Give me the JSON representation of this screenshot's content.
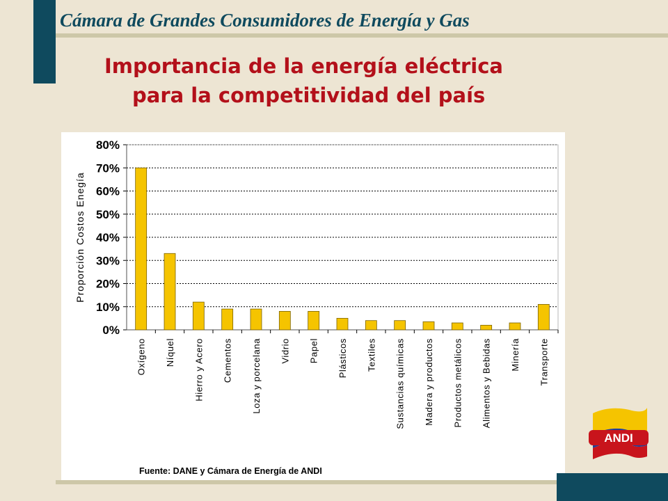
{
  "header": {
    "org_title": "Cámara  de Grandes Consumidores de Energía y Gas"
  },
  "slide": {
    "title_line1": "Importancia de la energía eléctrica",
    "title_line2": "para la competitividad del país"
  },
  "logo": {
    "text": "ANDI"
  },
  "colors": {
    "accent": "#0f4a5e",
    "title": "#b3101a",
    "bar": "#f5c400",
    "background": "#ede5d3"
  },
  "chart_data": {
    "type": "bar",
    "categories": [
      "Oxígeno",
      "Níquel",
      "Hierro y Acero",
      "Cementos",
      "Loza y porcelana",
      "Vidrio",
      "Papel",
      "Plásticos",
      "Textiles",
      "Sustancias químicas",
      "Madera y productos",
      "Productos metálicos",
      "Alimentos y Bebidas",
      "Minería",
      "Transporte"
    ],
    "values": [
      70,
      33,
      12,
      9,
      9,
      8,
      8,
      5,
      4,
      4,
      3.5,
      3,
      2,
      3,
      11
    ],
    "ylabel": "Proporción Costos Enegía",
    "xlabel": "",
    "ylim": [
      0,
      80
    ],
    "yticks": [
      "0%",
      "10%",
      "20%",
      "30%",
      "40%",
      "50%",
      "60%",
      "70%",
      "80%"
    ],
    "grid": true,
    "source": "Fuente: DANE y Cámara de Energía de ANDI"
  }
}
